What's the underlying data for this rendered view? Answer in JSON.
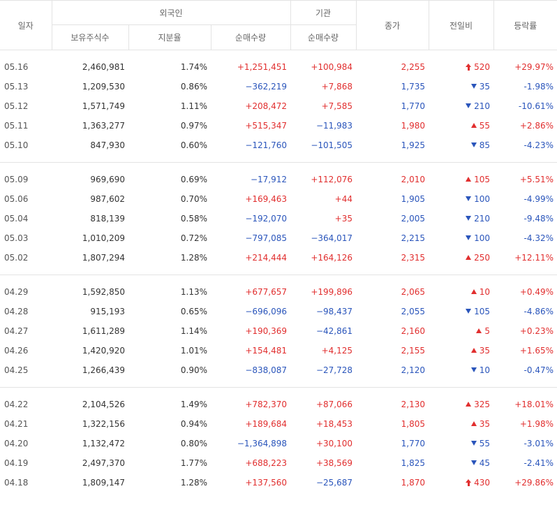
{
  "headers": {
    "date": "일자",
    "foreign": "외국인",
    "institution": "기관",
    "close": "종가",
    "change": "전일비",
    "rate": "등락률",
    "holdings": "보유주식수",
    "share_ratio": "지분율",
    "foreign_net": "순매수량",
    "inst_net": "순매수량"
  },
  "groups": [
    [
      {
        "date": "05.16",
        "holdings": "2,460,981",
        "ratio": "1.74%",
        "fnet": "+1,251,451",
        "inet": "+100,984",
        "close": "2,255",
        "dir": "limit-up",
        "change": "520",
        "rate": "+29.97%"
      },
      {
        "date": "05.13",
        "holdings": "1,209,530",
        "ratio": "0.86%",
        "fnet": "−362,219",
        "inet": "+7,868",
        "close": "1,735",
        "dir": "down",
        "change": "35",
        "rate": "-1.98%"
      },
      {
        "date": "05.12",
        "holdings": "1,571,749",
        "ratio": "1.11%",
        "fnet": "+208,472",
        "inet": "+7,585",
        "close": "1,770",
        "dir": "down",
        "change": "210",
        "rate": "-10.61%"
      },
      {
        "date": "05.11",
        "holdings": "1,363,277",
        "ratio": "0.97%",
        "fnet": "+515,347",
        "inet": "−11,983",
        "close": "1,980",
        "dir": "up",
        "change": "55",
        "rate": "+2.86%"
      },
      {
        "date": "05.10",
        "holdings": "847,930",
        "ratio": "0.60%",
        "fnet": "−121,760",
        "inet": "−101,505",
        "close": "1,925",
        "dir": "down",
        "change": "85",
        "rate": "-4.23%"
      }
    ],
    [
      {
        "date": "05.09",
        "holdings": "969,690",
        "ratio": "0.69%",
        "fnet": "−17,912",
        "inet": "+112,076",
        "close": "2,010",
        "dir": "up",
        "change": "105",
        "rate": "+5.51%"
      },
      {
        "date": "05.06",
        "holdings": "987,602",
        "ratio": "0.70%",
        "fnet": "+169,463",
        "inet": "+44",
        "close": "1,905",
        "dir": "down",
        "change": "100",
        "rate": "-4.99%"
      },
      {
        "date": "05.04",
        "holdings": "818,139",
        "ratio": "0.58%",
        "fnet": "−192,070",
        "inet": "+35",
        "close": "2,005",
        "dir": "down",
        "change": "210",
        "rate": "-9.48%"
      },
      {
        "date": "05.03",
        "holdings": "1,010,209",
        "ratio": "0.72%",
        "fnet": "−797,085",
        "inet": "−364,017",
        "close": "2,215",
        "dir": "down",
        "change": "100",
        "rate": "-4.32%"
      },
      {
        "date": "05.02",
        "holdings": "1,807,294",
        "ratio": "1.28%",
        "fnet": "+214,444",
        "inet": "+164,126",
        "close": "2,315",
        "dir": "up",
        "change": "250",
        "rate": "+12.11%"
      }
    ],
    [
      {
        "date": "04.29",
        "holdings": "1,592,850",
        "ratio": "1.13%",
        "fnet": "+677,657",
        "inet": "+199,896",
        "close": "2,065",
        "dir": "up",
        "change": "10",
        "rate": "+0.49%"
      },
      {
        "date": "04.28",
        "holdings": "915,193",
        "ratio": "0.65%",
        "fnet": "−696,096",
        "inet": "−98,437",
        "close": "2,055",
        "dir": "down",
        "change": "105",
        "rate": "-4.86%"
      },
      {
        "date": "04.27",
        "holdings": "1,611,289",
        "ratio": "1.14%",
        "fnet": "+190,369",
        "inet": "−42,861",
        "close": "2,160",
        "dir": "up",
        "change": "5",
        "rate": "+0.23%"
      },
      {
        "date": "04.26",
        "holdings": "1,420,920",
        "ratio": "1.01%",
        "fnet": "+154,481",
        "inet": "+4,125",
        "close": "2,155",
        "dir": "up",
        "change": "35",
        "rate": "+1.65%"
      },
      {
        "date": "04.25",
        "holdings": "1,266,439",
        "ratio": "0.90%",
        "fnet": "−838,087",
        "inet": "−27,728",
        "close": "2,120",
        "dir": "down",
        "change": "10",
        "rate": "-0.47%"
      }
    ],
    [
      {
        "date": "04.22",
        "holdings": "2,104,526",
        "ratio": "1.49%",
        "fnet": "+782,370",
        "inet": "+87,066",
        "close": "2,130",
        "dir": "up",
        "change": "325",
        "rate": "+18.01%"
      },
      {
        "date": "04.21",
        "holdings": "1,322,156",
        "ratio": "0.94%",
        "fnet": "+189,684",
        "inet": "+18,453",
        "close": "1,805",
        "dir": "up",
        "change": "35",
        "rate": "+1.98%"
      },
      {
        "date": "04.20",
        "holdings": "1,132,472",
        "ratio": "0.80%",
        "fnet": "−1,364,898",
        "inet": "+30,100",
        "close": "1,770",
        "dir": "down",
        "change": "55",
        "rate": "-3.01%"
      },
      {
        "date": "04.19",
        "holdings": "2,497,370",
        "ratio": "1.77%",
        "fnet": "+688,223",
        "inet": "+38,569",
        "close": "1,825",
        "dir": "down",
        "change": "45",
        "rate": "-2.41%"
      },
      {
        "date": "04.18",
        "holdings": "1,809,147",
        "ratio": "1.28%",
        "fnet": "+137,560",
        "inet": "−25,687",
        "close": "1,870",
        "dir": "limit-up",
        "change": "430",
        "rate": "+29.86%"
      }
    ]
  ],
  "colors": {
    "up": "#e12e2e",
    "down": "#2a55bb",
    "border": "#e3e3e3"
  },
  "icons": {
    "up": "triangle-up-icon",
    "down": "triangle-down-icon",
    "limit-up": "arrow-up-icon"
  }
}
